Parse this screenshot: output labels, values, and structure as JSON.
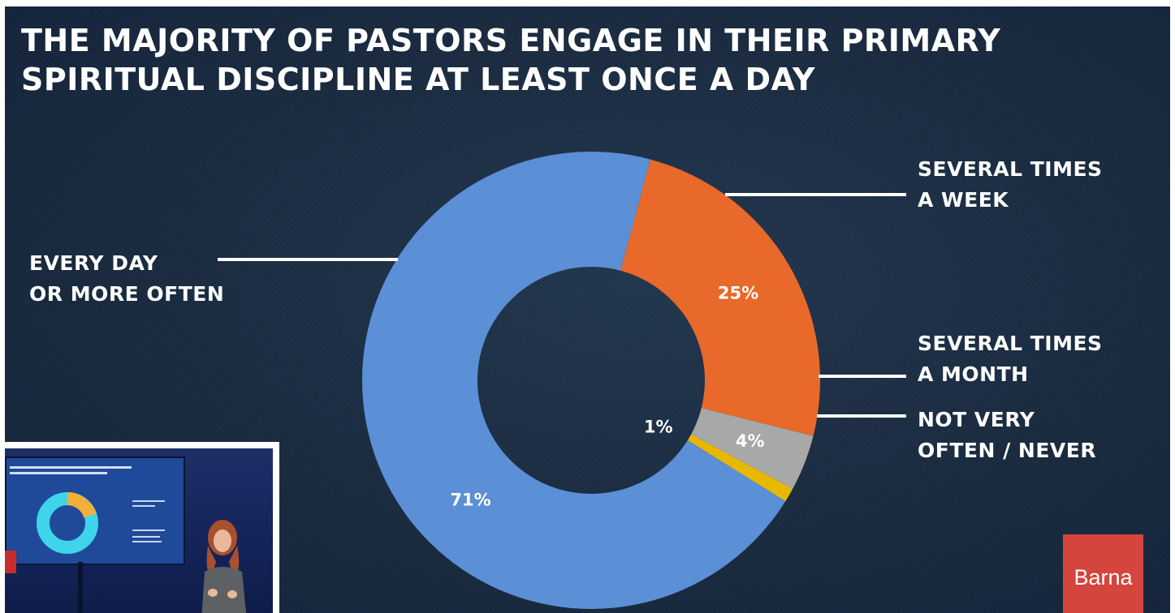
{
  "title": {
    "line1": "THE MAJORITY OF PASTORS ENGAGE IN THEIR PRIMARY",
    "line2": "SPIRITUAL DISCIPLINE AT LEAST ONCE A DAY"
  },
  "labels": {
    "every_day_1": "EVERY DAY",
    "every_day_2": "OR MORE OFTEN",
    "week_1": "SEVERAL TIMES",
    "week_2": "A WEEK",
    "month_1": "SEVERAL TIMES",
    "month_2": "A MONTH",
    "never_1": "NOT VERY",
    "never_2": "OFTEN / NEVER"
  },
  "logo": "Barna",
  "colors": {
    "every_day": "#5b8fd6",
    "several_times_a_week": "#e8692a",
    "several_times_a_month": "#a8a8a8",
    "not_very_often_never": "#e8b800",
    "background": "#1a2b40",
    "logo": "#d4453d"
  },
  "chart_data": {
    "type": "pie",
    "donut": true,
    "title": "THE MAJORITY OF PASTORS ENGAGE IN THEIR PRIMARY SPIRITUAL DISCIPLINE AT LEAST ONCE A DAY",
    "categories": [
      "SEVERAL TIMES A WEEK",
      "SEVERAL TIMES A MONTH",
      "NOT VERY OFTEN / NEVER",
      "EVERY DAY OR MORE OFTEN"
    ],
    "values": [
      25,
      4,
      1,
      71
    ],
    "value_labels": [
      "25%",
      "4%",
      "1%",
      "71%"
    ],
    "units": "%",
    "legend": "none"
  }
}
